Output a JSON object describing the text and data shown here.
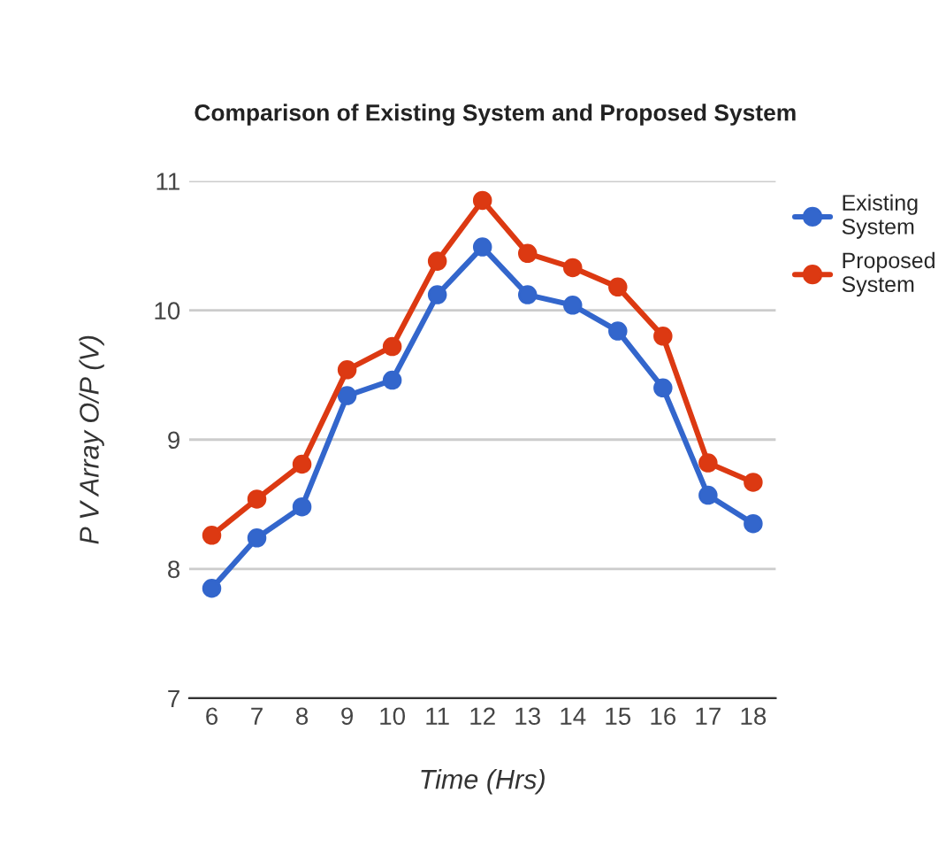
{
  "chart_data": {
    "type": "line",
    "title": "Comparison of Existing System and Proposed System",
    "xlabel": "Time (Hrs)",
    "ylabel": "P V Array O/P (V)",
    "categories": [
      "6",
      "7",
      "8",
      "9",
      "10",
      "11",
      "12",
      "13",
      "14",
      "15",
      "16",
      "17",
      "18"
    ],
    "series": [
      {
        "name": "Existing System",
        "color": "#3366cc",
        "values": [
          7.85,
          8.24,
          8.48,
          9.34,
          9.46,
          10.12,
          10.49,
          10.12,
          10.04,
          9.84,
          9.4,
          8.57,
          8.35
        ]
      },
      {
        "name": "Proposed System",
        "color": "#dc3912",
        "values": [
          8.26,
          8.54,
          8.81,
          9.54,
          9.72,
          10.38,
          10.85,
          10.44,
          10.33,
          10.18,
          9.8,
          8.82,
          8.67
        ]
      }
    ],
    "ylim": [
      7,
      11
    ],
    "yticks": [
      7,
      8,
      9,
      10,
      11
    ],
    "grid": "y",
    "legend": "right",
    "marker": "circle",
    "line_style": "solid"
  }
}
